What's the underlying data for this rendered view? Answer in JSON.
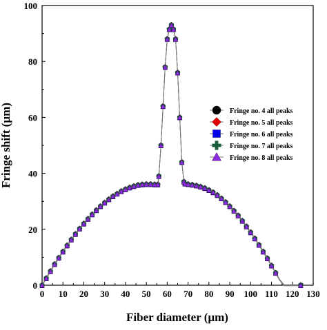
{
  "chart_data": {
    "type": "line",
    "xlabel": "Fiber diameter (µm)",
    "ylabel": "Fringe shift (µm)",
    "xlim": [
      0,
      130
    ],
    "ylim": [
      0,
      100
    ],
    "x_ticks": [
      0,
      10,
      20,
      30,
      40,
      50,
      60,
      70,
      80,
      90,
      100,
      110,
      120,
      130
    ],
    "y_ticks": [
      0,
      20,
      40,
      60,
      80,
      100
    ],
    "grid": false,
    "legend_position": "right",
    "profile": {
      "x": [
        0,
        2,
        4,
        6,
        8,
        10,
        12,
        14,
        16,
        18,
        20,
        22,
        24,
        26,
        28,
        30,
        32,
        34,
        36,
        38,
        40,
        42,
        44,
        46,
        48,
        50,
        52,
        54,
        55.5,
        56,
        57,
        58,
        59,
        60,
        61,
        62,
        63,
        64,
        65,
        66,
        67,
        68,
        68.5,
        70,
        72,
        74,
        76,
        78,
        80,
        82,
        84,
        86,
        88,
        90,
        92,
        94,
        96,
        98,
        100,
        102,
        104,
        106,
        108,
        110,
        112,
        114,
        116,
        118,
        120,
        122,
        124
      ],
      "y": [
        0,
        2.5,
        5,
        7.5,
        9.8,
        12,
        14.2,
        16.3,
        18.3,
        20.2,
        22,
        23.7,
        25.3,
        26.8,
        28.2,
        29.5,
        30.7,
        31.8,
        32.7,
        33.6,
        34.3,
        34.9,
        35.4,
        35.8,
        36.0,
        36.1,
        36.1,
        36.0,
        36.0,
        39,
        50,
        64,
        78,
        88,
        91.5,
        93,
        91.5,
        88,
        76,
        60,
        44,
        37,
        36.3,
        36.1,
        35.9,
        35.6,
        35.2,
        34.7,
        34.0,
        33.2,
        32.2,
        31.0,
        29.7,
        28.2,
        26.6,
        24.9,
        23.0,
        21.0,
        18.9,
        16.7,
        14.4,
        12.0,
        9.6,
        7.0,
        4.4,
        1.8,
        0,
        0,
        0,
        0,
        0
      ]
    },
    "series": [
      {
        "name": "Fringe no. 4 all peaks",
        "marker": "circle",
        "color": "#000000",
        "offset": 0
      },
      {
        "name": "Fringe no. 5 all peaks",
        "marker": "diamond",
        "color": "#e00000",
        "offset": 0.2
      },
      {
        "name": "Fringe no. 6 all peaks",
        "marker": "square",
        "color": "#0000ee",
        "offset": -0.2
      },
      {
        "name": "Fringe no. 7 all peaks",
        "marker": "plus",
        "color": "#1b5e3b",
        "offset": 0.1
      },
      {
        "name": "Fringe no. 8 all peaks",
        "marker": "triangle",
        "color": "#8a2be2",
        "offset": -0.1
      }
    ]
  }
}
